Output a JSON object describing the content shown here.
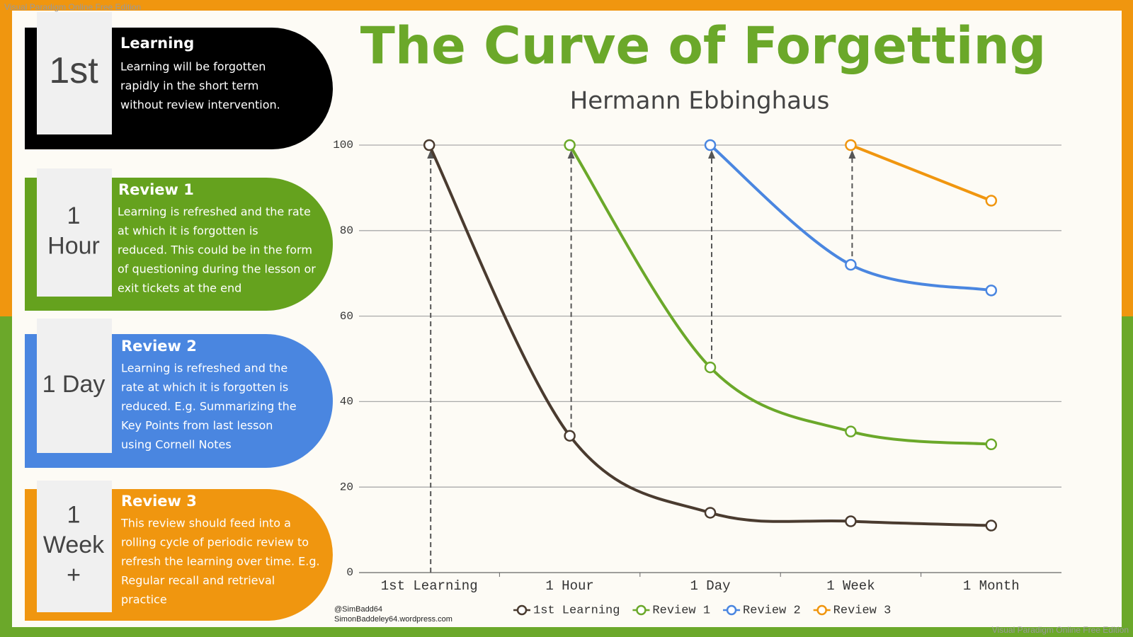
{
  "watermark": "Visual Paradigm Online Free Edition",
  "credit": [
    "@SimBadd64",
    "SimonBaddeley64.wordpress.com"
  ],
  "cards": [
    {
      "label": [
        "1st"
      ],
      "title": "Learning",
      "color": "#000000",
      "body": [
        "Learning will be forgotten",
        "rapidly in the short term",
        "without review intervention."
      ]
    },
    {
      "label": [
        "1",
        "Hour"
      ],
      "title": "Review 1",
      "color": "#65a21e",
      "body": [
        "Learning is refreshed and the rate",
        "at which it is forgotten is",
        "reduced. This could be in the form",
        "of questioning during the lesson or",
        "exit tickets at the end"
      ]
    },
    {
      "label": [
        "1 Day"
      ],
      "title": "Review 2",
      "color": "#4a86e0",
      "body": [
        "Learning is refreshed and the",
        "rate at which it is forgotten is",
        "reduced.  E.g. Summarizing the",
        "Key Points from last lesson",
        "using Cornell Notes"
      ]
    },
    {
      "label": [
        "1",
        "Week",
        "+"
      ],
      "title": "Review 3",
      "color": "#f0960f",
      "body": [
        "This review should feed into a",
        "rolling cycle of periodic review to",
        "refresh the learning over time.  E.g.",
        "Regular recall and retrieval",
        "practice"
      ]
    }
  ],
  "chart_data": {
    "type": "line",
    "title": "The Curve of Forgetting",
    "subtitle": "Hermann Ebbinghaus",
    "categories": [
      "1st Learning",
      "1 Hour",
      "1 Day",
      "1 Week",
      "1 Month"
    ],
    "series": [
      {
        "name": "1st Learning",
        "color": "#4a3b2f",
        "values": [
          100,
          32,
          14,
          12,
          11
        ]
      },
      {
        "name": "Review 1",
        "color": "#6ba82a",
        "values": [
          null,
          100,
          48,
          33,
          30
        ]
      },
      {
        "name": "Review 2",
        "color": "#4a86e0",
        "values": [
          null,
          null,
          100,
          72,
          66
        ]
      },
      {
        "name": "Review 3",
        "color": "#f0960f",
        "values": [
          null,
          null,
          null,
          100,
          87
        ]
      }
    ],
    "ylim": [
      0,
      100
    ],
    "yticks": [
      0,
      20,
      40,
      60,
      80,
      100
    ],
    "grid": true,
    "legend": "bottom"
  }
}
